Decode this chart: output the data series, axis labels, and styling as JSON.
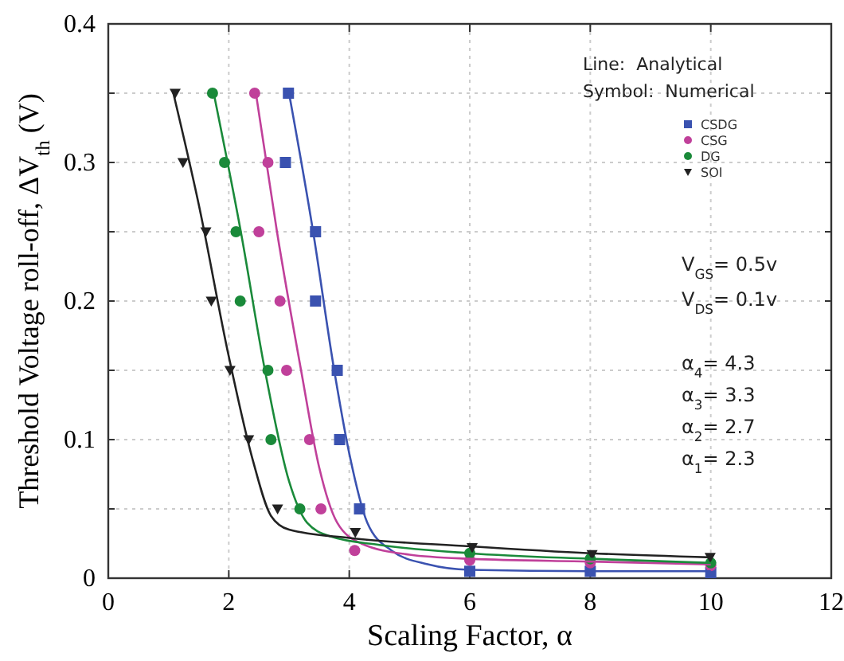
{
  "chart_data": {
    "type": "line",
    "xlabel": "Scaling Factor, α",
    "ylabel": "Threshold Voltage roll-off, ΔV$_{th}$ (V)",
    "xlim": [
      0,
      12
    ],
    "xticks": [
      0,
      2,
      4,
      6,
      8,
      10,
      12
    ],
    "ylim": [
      0,
      0.4
    ],
    "yticks": [
      0,
      0.1,
      0.2,
      0.3,
      0.4
    ],
    "grid": true,
    "legend": "top right",
    "annotations": [
      "Line:  Analytical",
      "Symbol:  Numerical",
      "V$_{GS}$= 0.5v",
      "V$_{DS}$= 0.1v",
      "α$_{4}$= 4.3",
      "α$_{3}$= 3.3",
      "α$_{2}$= 2.7",
      "α$_{1}$= 2.3"
    ],
    "series": [
      {
        "name": "CSDG",
        "type": "scatter",
        "marker": "square",
        "color": "#3a52b0",
        "x": [
          2.99,
          2.94,
          3.44,
          3.44,
          3.8,
          3.84,
          4.17,
          6,
          8,
          10
        ],
        "values": [
          0.35,
          0.3,
          0.25,
          0.2,
          0.15,
          0.1,
          0.05,
          0.005,
          0.005,
          0.004
        ]
      },
      {
        "name": "CSG",
        "type": "scatter",
        "marker": "circle",
        "color": "#c0409a",
        "x": [
          2.43,
          2.65,
          2.5,
          2.85,
          2.96,
          3.34,
          3.53,
          4.09,
          6,
          8,
          10
        ],
        "values": [
          0.35,
          0.3,
          0.25,
          0.2,
          0.15,
          0.1,
          0.05,
          0.02,
          0.013,
          0.011,
          0.009
        ]
      },
      {
        "name": "DG",
        "type": "scatter",
        "marker": "circle",
        "color": "#1a8a3a",
        "x": [
          1.73,
          1.93,
          2.12,
          2.19,
          2.65,
          2.7,
          3.18,
          6,
          8,
          10
        ],
        "values": [
          0.35,
          0.3,
          0.25,
          0.2,
          0.15,
          0.1,
          0.05,
          0.018,
          0.014,
          0.011
        ]
      },
      {
        "name": "SOI",
        "type": "scatter",
        "marker": "triangle",
        "color": "#222222",
        "x": [
          1.11,
          1.24,
          1.62,
          1.71,
          2.02,
          2.33,
          2.81,
          4.1,
          6.04,
          8.03,
          9.99
        ],
        "values": [
          0.35,
          0.3,
          0.25,
          0.2,
          0.15,
          0.1,
          0.05,
          0.033,
          0.022,
          0.017,
          0.015
        ]
      },
      {
        "marker": "none",
        "color": "#3a52b0",
        "x": [
          3,
          3.4,
          3.75,
          4,
          4.3,
          4.7,
          5.3,
          6,
          8,
          10
        ],
        "values": [
          0.35,
          0.25,
          0.15,
          0.09,
          0.04,
          0.02,
          0.01,
          0.006,
          0.005,
          0.005
        ]
      },
      {
        "marker": "none",
        "color": "#c0409a",
        "x": [
          2.45,
          2.8,
          3.2,
          3.5,
          3.8,
          4.2,
          5,
          6,
          8,
          10
        ],
        "values": [
          0.35,
          0.25,
          0.15,
          0.08,
          0.04,
          0.025,
          0.017,
          0.014,
          0.012,
          0.01
        ]
      },
      {
        "marker": "none",
        "color": "#1a8a3a",
        "x": [
          1.75,
          2.2,
          2.6,
          3,
          3.3,
          3.7,
          4.5,
          6,
          8,
          10
        ],
        "values": [
          0.35,
          0.25,
          0.15,
          0.07,
          0.04,
          0.03,
          0.024,
          0.018,
          0.014,
          0.011
        ]
      },
      {
        "marker": "none",
        "color": "#222222",
        "x": [
          1.08,
          1.5,
          2,
          2.4,
          2.7,
          3,
          4,
          6,
          8,
          10
        ],
        "values": [
          0.35,
          0.27,
          0.16,
          0.085,
          0.045,
          0.035,
          0.029,
          0.023,
          0.018,
          0.015
        ]
      }
    ]
  }
}
